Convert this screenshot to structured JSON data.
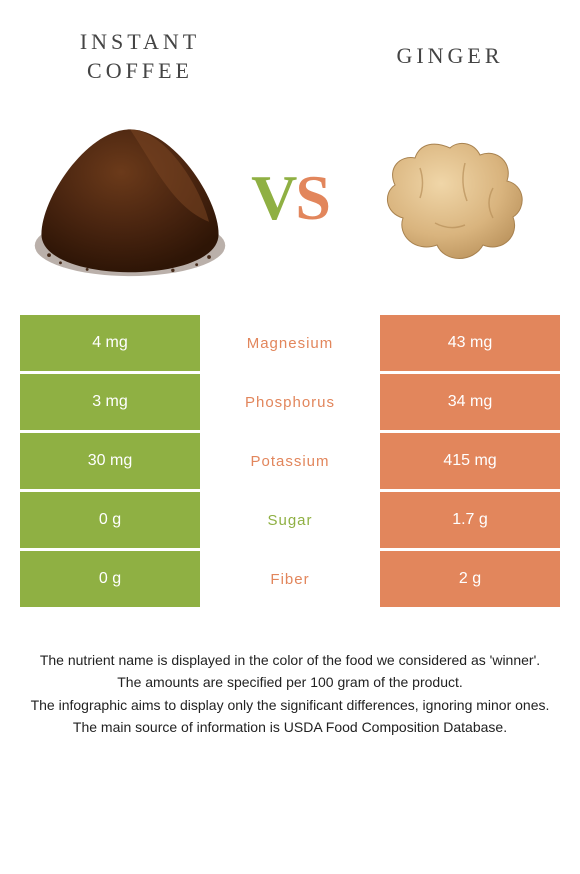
{
  "header": {
    "left_title": "Instant coffee",
    "right_title": "Ginger",
    "vs_v": "V",
    "vs_s": "S"
  },
  "colors": {
    "left": "#8fb043",
    "right": "#e2865c",
    "text": "#333333",
    "bg": "#ffffff"
  },
  "table": {
    "type": "comparison-table",
    "rows": [
      {
        "left": "4 mg",
        "label": "Magnesium",
        "winner": "right",
        "right": "43 mg"
      },
      {
        "left": "3 mg",
        "label": "Phosphorus",
        "winner": "right",
        "right": "34 mg"
      },
      {
        "left": "30 mg",
        "label": "Potassium",
        "winner": "right",
        "right": "415 mg"
      },
      {
        "left": "0 g",
        "label": "Sugar",
        "winner": "left",
        "right": "1.7 g"
      },
      {
        "left": "0 g",
        "label": "Fiber",
        "winner": "right",
        "right": "2 g"
      }
    ]
  },
  "footnotes": [
    "The nutrient name is displayed in the color of the food we considered as 'winner'.",
    "The amounts are specified per 100 gram of the product.",
    "The infographic aims to display only the significant differences, ignoring minor ones.",
    "The main source of information is USDA Food Composition Database."
  ]
}
